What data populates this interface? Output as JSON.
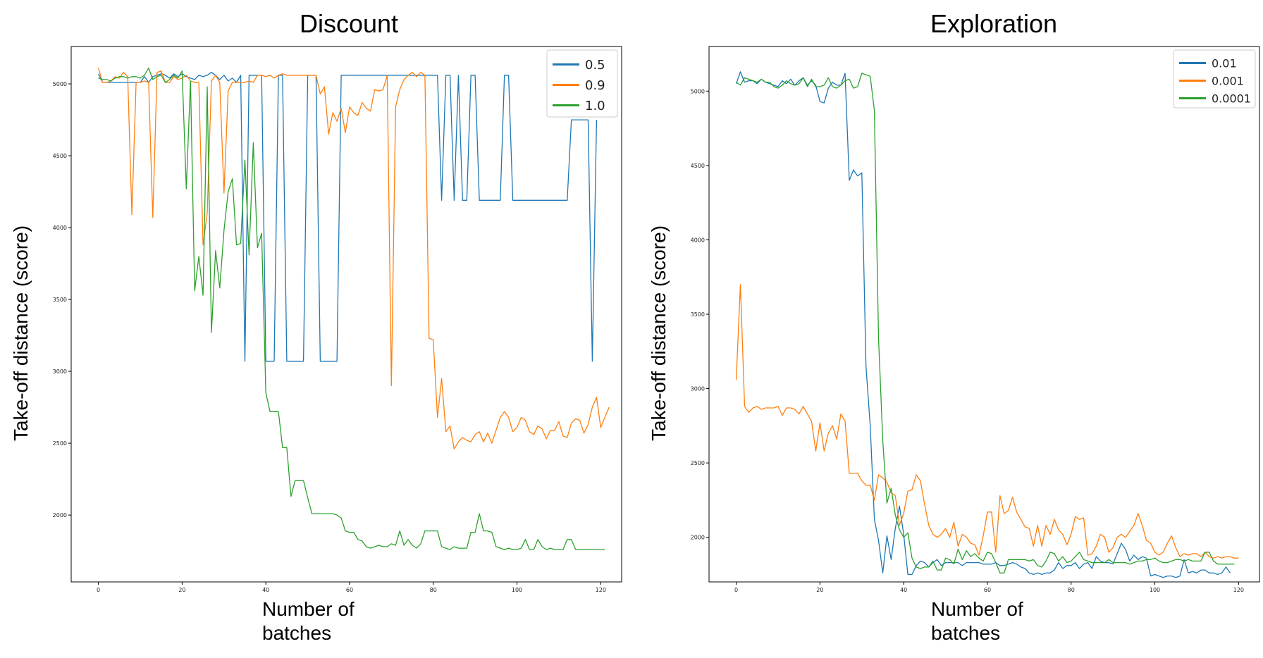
{
  "chart_data": [
    {
      "type": "line",
      "title": "Discount",
      "xlabel": "Number of batches",
      "ylabel": "Take-off distance (score)",
      "xlim": [
        -6.5,
        125
      ],
      "ylim": [
        1535,
        5260
      ],
      "xticks": [
        0,
        20,
        40,
        60,
        80,
        100,
        120
      ],
      "yticks": [
        2000,
        2500,
        3000,
        3500,
        4000,
        4500,
        5000
      ],
      "legend_position": "top-right",
      "series": [
        {
          "name": "0.5",
          "color": "#1f77b4",
          "values": [
            5070,
            5010,
            5010,
            5010,
            5010,
            5010,
            5010,
            5010,
            5010,
            5010,
            5010,
            5050,
            5010,
            5050,
            5060,
            5070,
            5060,
            5040,
            5070,
            5050,
            5070,
            5050,
            5040,
            5030,
            5060,
            5050,
            5060,
            5080,
            5060,
            5030,
            5060,
            5020,
            5040,
            5010,
            5060,
            3070,
            5060,
            5060,
            5060,
            5060,
            3070,
            3070,
            3070,
            5060,
            5060,
            3070,
            3070,
            3070,
            3070,
            3070,
            5060,
            5060,
            5060,
            3070,
            3070,
            3070,
            3070,
            3070,
            5060,
            5060,
            5060,
            5060,
            5060,
            5060,
            5060,
            5060,
            5060,
            5060,
            5060,
            5060,
            5060,
            5060,
            5060,
            5060,
            5060,
            5060,
            5060,
            5060,
            5060,
            5060,
            5060,
            5060,
            4190,
            5060,
            5060,
            4190,
            5060,
            4190,
            4190,
            5060,
            5060,
            4190,
            4190,
            4190,
            4190,
            4190,
            4190,
            5060,
            5060,
            4190,
            4190,
            4190,
            4190,
            4190,
            4190,
            4190,
            4190,
            4190,
            4190,
            4190,
            4190,
            4190,
            4190,
            4750,
            4750,
            4750,
            4750,
            4750,
            3070,
            4750
          ]
        },
        {
          "name": "0.9",
          "color": "#ff7f0e",
          "values": [
            5110,
            5010,
            5010,
            5020,
            5050,
            5040,
            5080,
            5050,
            4090,
            5010,
            5010,
            5020,
            5010,
            4070,
            5080,
            5090,
            5010,
            5010,
            5050,
            5030,
            5040,
            5060,
            5020,
            5010,
            5010,
            3880,
            4100,
            5020,
            5060,
            5010,
            4240,
            4950,
            5010,
            5010,
            5010,
            5010,
            5020,
            5010,
            5060,
            5060,
            5050,
            5060,
            5040,
            5060,
            5070,
            5060,
            5060,
            5060,
            5060,
            5060,
            5060,
            5060,
            5060,
            4930,
            4980,
            4650,
            4800,
            4740,
            4830,
            4660,
            4840,
            4800,
            4780,
            4870,
            4830,
            4810,
            4960,
            4950,
            4960,
            5060,
            2900,
            4840,
            4960,
            5030,
            5060,
            5080,
            5050,
            5080,
            5060,
            3230,
            3220,
            2680,
            2950,
            2580,
            2620,
            2460,
            2510,
            2540,
            2520,
            2510,
            2560,
            2580,
            2510,
            2570,
            2500,
            2590,
            2680,
            2720,
            2680,
            2580,
            2610,
            2680,
            2660,
            2580,
            2560,
            2620,
            2600,
            2530,
            2590,
            2590,
            2650,
            2550,
            2540,
            2640,
            2670,
            2660,
            2570,
            2630,
            2750,
            2820,
            2610,
            2680,
            2750
          ]
        },
        {
          "name": "1.0",
          "color": "#2ca02c",
          "values": [
            5040,
            5030,
            5030,
            5020,
            5040,
            5050,
            5050,
            5040,
            5050,
            5050,
            5040,
            5060,
            5110,
            5030,
            5050,
            5060,
            5010,
            5030,
            5060,
            5040,
            5090,
            4270,
            5020,
            3560,
            3800,
            3530,
            4980,
            3270,
            3840,
            3580,
            3980,
            4250,
            4340,
            3880,
            3890,
            4470,
            3810,
            4590,
            3860,
            3960,
            2850,
            2720,
            2720,
            2720,
            2470,
            2470,
            2130,
            2240,
            2240,
            2240,
            2120,
            2010,
            2010,
            2010,
            2010,
            2010,
            2010,
            2000,
            1980,
            1890,
            1880,
            1880,
            1830,
            1820,
            1780,
            1770,
            1780,
            1790,
            1780,
            1780,
            1800,
            1790,
            1890,
            1790,
            1830,
            1790,
            1770,
            1800,
            1890,
            1890,
            1890,
            1890,
            1780,
            1770,
            1760,
            1780,
            1770,
            1770,
            1770,
            1880,
            1880,
            2010,
            1890,
            1890,
            1880,
            1780,
            1770,
            1760,
            1770,
            1760,
            1760,
            1770,
            1830,
            1760,
            1760,
            1830,
            1780,
            1760,
            1770,
            1760,
            1760,
            1760,
            1830,
            1830,
            1760,
            1760,
            1760,
            1760,
            1760,
            1760,
            1760,
            1760
          ]
        }
      ]
    },
    {
      "type": "line",
      "title": "Exploration",
      "xlabel": "Number of batches",
      "ylabel": "Take-off distance (score)",
      "xlim": [
        -6.5,
        125
      ],
      "ylim": [
        1700,
        5300
      ],
      "xticks": [
        0,
        20,
        40,
        60,
        80,
        100,
        120
      ],
      "yticks": [
        2000,
        2500,
        3000,
        3500,
        4000,
        4500,
        5000
      ],
      "legend_position": "top-right",
      "series": [
        {
          "name": "0.01",
          "color": "#1f77b4",
          "values": [
            5050,
            5130,
            5060,
            5070,
            5070,
            5050,
            5080,
            5060,
            5050,
            5040,
            5030,
            5070,
            5050,
            5080,
            5040,
            5070,
            5090,
            5040,
            5070,
            5040,
            4930,
            4920,
            5020,
            5060,
            5040,
            5040,
            5120,
            4400,
            4470,
            4430,
            4450,
            3150,
            2750,
            2120,
            1980,
            1760,
            2010,
            1850,
            2060,
            2210,
            2020,
            1750,
            1750,
            1810,
            1840,
            1830,
            1800,
            1830,
            1850,
            1810,
            1830,
            1830,
            1830,
            1830,
            1810,
            1830,
            1830,
            1830,
            1830,
            1820,
            1820,
            1820,
            1830,
            1810,
            1810,
            1820,
            1830,
            1820,
            1800,
            1790,
            1760,
            1750,
            1760,
            1750,
            1760,
            1760,
            1780,
            1830,
            1790,
            1810,
            1810,
            1830,
            1790,
            1820,
            1830,
            1790,
            1870,
            1840,
            1830,
            1830,
            1820,
            1890,
            1960,
            1920,
            1840,
            1880,
            1850,
            1870,
            1860,
            1740,
            1750,
            1740,
            1730,
            1740,
            1740,
            1730,
            1740,
            1850,
            1760,
            1770,
            1760,
            1780,
            1780,
            1760,
            1760,
            1750,
            1760,
            1800,
            1760
          ]
        },
        {
          "name": "0.001",
          "color": "#ff7f0e",
          "values": [
            3060,
            3700,
            2880,
            2840,
            2870,
            2880,
            2860,
            2870,
            2870,
            2870,
            2880,
            2820,
            2870,
            2870,
            2860,
            2830,
            2880,
            2830,
            2780,
            2580,
            2770,
            2580,
            2700,
            2750,
            2660,
            2830,
            2780,
            2430,
            2430,
            2430,
            2380,
            2350,
            2350,
            2250,
            2420,
            2400,
            2370,
            2300,
            2280,
            2080,
            2160,
            2310,
            2320,
            2420,
            2380,
            2220,
            2080,
            2020,
            2000,
            2020,
            2060,
            2000,
            2100,
            1940,
            2020,
            2000,
            1960,
            1950,
            1880,
            2010,
            2170,
            2170,
            1900,
            2280,
            2160,
            2180,
            2270,
            2170,
            2120,
            2070,
            2060,
            1940,
            2080,
            1940,
            2080,
            2020,
            2120,
            2050,
            2020,
            1950,
            2020,
            2140,
            2120,
            2130,
            1880,
            1890,
            1940,
            2020,
            2000,
            1900,
            1930,
            2000,
            2020,
            2000,
            2040,
            2080,
            2160,
            2080,
            1980,
            1960,
            1900,
            1880,
            1900,
            1960,
            2010,
            1930,
            1870,
            1890,
            1880,
            1890,
            1890,
            1870,
            1900,
            1870,
            1860,
            1870,
            1860,
            1870,
            1870,
            1860,
            1860
          ]
        },
        {
          "name": "0.0001",
          "color": "#2ca02c",
          "values": [
            5060,
            5040,
            5090,
            5080,
            5070,
            5060,
            5080,
            5060,
            5060,
            5030,
            5020,
            5040,
            5070,
            5050,
            5040,
            5050,
            5090,
            5030,
            5080,
            5030,
            5030,
            5040,
            5090,
            5030,
            5020,
            5040,
            5070,
            5080,
            5020,
            5030,
            5120,
            5110,
            5100,
            4870,
            3340,
            2650,
            2230,
            2330,
            2150,
            2050,
            2000,
            2030,
            1860,
            1800,
            1790,
            1800,
            1800,
            1840,
            1780,
            1780,
            1860,
            1850,
            1820,
            1920,
            1850,
            1910,
            1870,
            1890,
            1860,
            1840,
            1900,
            1890,
            1830,
            1760,
            1760,
            1850,
            1850,
            1850,
            1850,
            1850,
            1840,
            1850,
            1810,
            1800,
            1840,
            1900,
            1890,
            1840,
            1870,
            1830,
            1840,
            1870,
            1900,
            1850,
            1840,
            1830,
            1830,
            1830,
            1830,
            1850,
            1830,
            1830,
            1830,
            1830,
            1820,
            1830,
            1840,
            1840,
            1850,
            1850,
            1860,
            1840,
            1830,
            1830,
            1840,
            1850,
            1850,
            1840,
            1850,
            1840,
            1840,
            1840,
            1900,
            1900,
            1840,
            1820,
            1820,
            1820,
            1820,
            1820
          ]
        }
      ]
    }
  ]
}
